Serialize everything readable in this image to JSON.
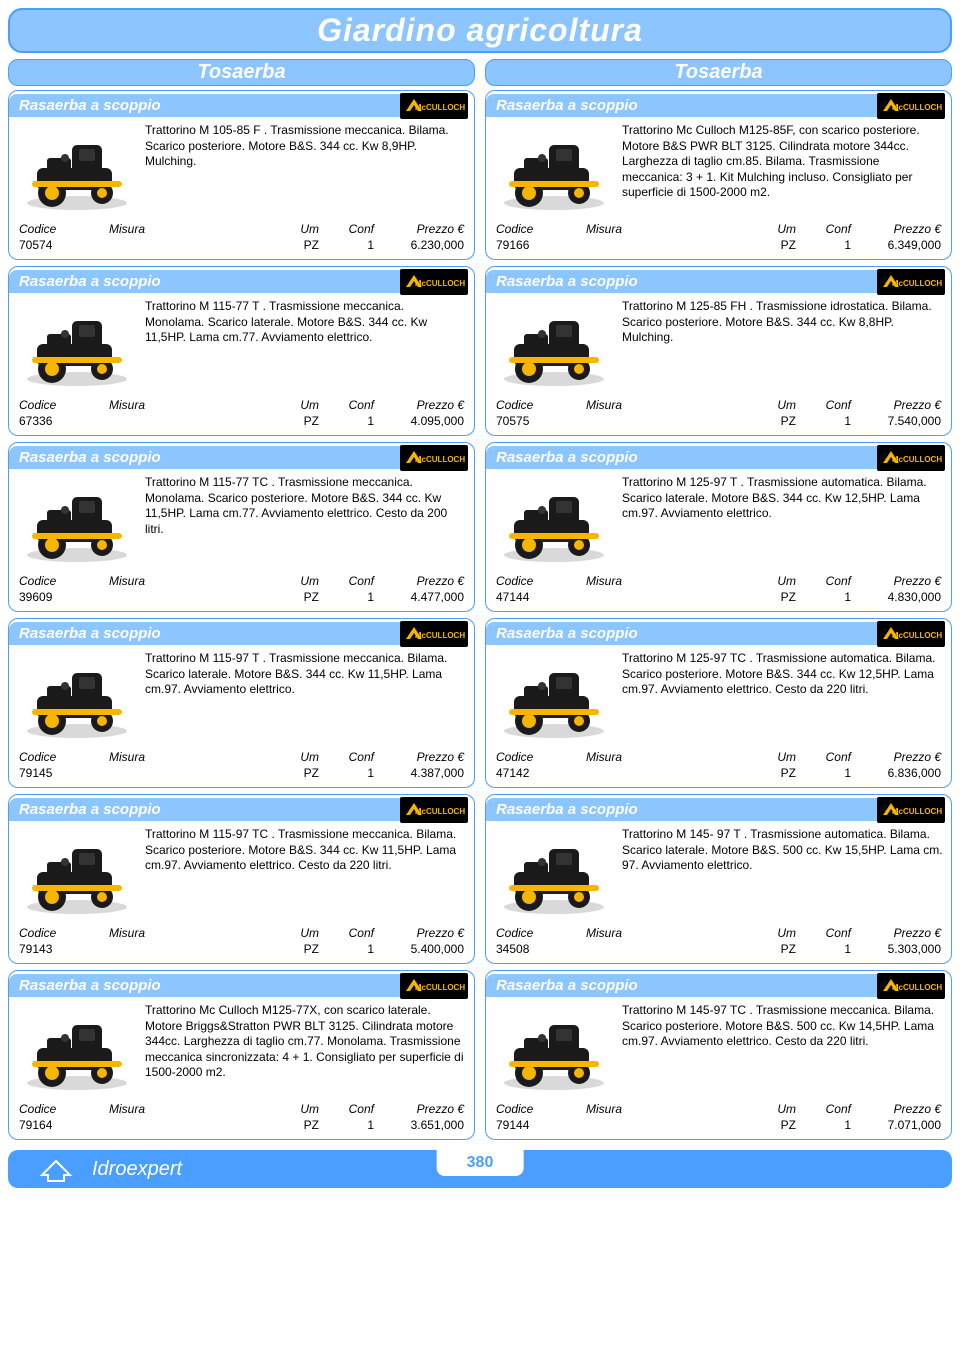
{
  "page_title": "Giardino agricoltura",
  "section_left": "Tosaerba",
  "section_right": "Tosaerba",
  "subcategory": "Rasaerba a scoppio",
  "brand": "McCULLOCH",
  "table_headers": {
    "codice": "Codice",
    "misura": "Misura",
    "um": "Um",
    "conf": "Conf",
    "prezzo": "Prezzo €"
  },
  "footer_brand": "Idroexpert",
  "footer_page": "380",
  "colors": {
    "accent": "#4a9eff",
    "bar_bg": "#8cc5ff",
    "white": "#ffffff",
    "badge_bg": "#000000",
    "badge_fg": "#f7b500"
  },
  "rows": [
    {
      "left": {
        "desc": "Trattorino M 105-85  F . Trasmissione meccanica. Bilama. Scarico posteriore. Motore B&S. 344 cc. Kw  8,9HP. Mulching.",
        "codice": "70574",
        "misura": "",
        "um": "PZ",
        "conf": "1",
        "prezzo": "6.230,000"
      },
      "right": {
        "desc": "Trattorino Mc Culloch M125-85F, con scarico posteriore. Motore B&S PWR BLT 3125. Cilindrata motore 344cc. Larghezza di taglio cm.85. Bilama. Trasmissione meccanica: 3 + 1. Kit Mulching incluso. Consigliato per superficie di 1500-2000 m2.",
        "codice": "79166",
        "misura": "",
        "um": "PZ",
        "conf": "1",
        "prezzo": "6.349,000"
      }
    },
    {
      "left": {
        "desc": "Trattorino M 115-77  T . Trasmissione meccanica. Monolama. Scarico laterale. Motore B&S. 344 cc. Kw 11,5HP. Lama cm.77. Avviamento elettrico.",
        "codice": "67336",
        "misura": "",
        "um": "PZ",
        "conf": "1",
        "prezzo": "4.095,000"
      },
      "right": {
        "desc": "Trattorino M 125-85  FH . Trasmissione idrostatica. Bilama. Scarico posteriore. Motore B&S. 344 cc. Kw  8,8HP. Mulching.",
        "codice": "70575",
        "misura": "",
        "um": "PZ",
        "conf": "1",
        "prezzo": "7.540,000"
      }
    },
    {
      "left": {
        "desc": "Trattorino M 115-77  TC . Trasmissione meccanica. Monolama. Scarico posteriore. Motore B&S. 344 cc. Kw 11,5HP. Lama cm.77. Avviamento elettrico. Cesto da 200 litri.",
        "codice": "39609",
        "misura": "",
        "um": "PZ",
        "conf": "1",
        "prezzo": "4.477,000"
      },
      "right": {
        "desc": "Trattorino M 125-97  T . Trasmissione automatica. Bilama. Scarico laterale. Motore B&S. 344 cc. Kw 12,5HP. Lama cm.97. Avviamento elettrico.",
        "codice": "47144",
        "misura": "",
        "um": "PZ",
        "conf": "1",
        "prezzo": "4.830,000"
      }
    },
    {
      "left": {
        "desc": "Trattorino M 115-97  T . Trasmissione meccanica. Bilama. Scarico laterale. Motore B&S. 344 cc. Kw 11,5HP. Lama cm.97. Avviamento elettrico.",
        "codice": "79145",
        "misura": "",
        "um": "PZ",
        "conf": "1",
        "prezzo": "4.387,000"
      },
      "right": {
        "desc": "Trattorino M 125-97  TC . Trasmissione automatica. Bilama. Scarico posteriore. Motore B&S. 344 cc. Kw 12,5HP. Lama cm.97. Avviamento elettrico. Cesto da 220 litri.",
        "codice": "47142",
        "misura": "",
        "um": "PZ",
        "conf": "1",
        "prezzo": "6.836,000"
      }
    },
    {
      "left": {
        "desc": "Trattorino M 115-97  TC . Trasmissione meccanica. Bilama. Scarico posteriore. Motore B&S. 344 cc. Kw 11,5HP. Lama cm.97. Avviamento elettrico. Cesto da 220 litri.",
        "codice": "79143",
        "misura": "",
        "um": "PZ",
        "conf": "1",
        "prezzo": "5.400,000"
      },
      "right": {
        "desc": "Trattorino M 145- 97 T . Trasmissione automatica. Bilama. Scarico laterale. Motore B&S. 500 cc. Kw 15,5HP. Lama cm. 97. Avviamento elettrico.",
        "codice": "34508",
        "misura": "",
        "um": "PZ",
        "conf": "1",
        "prezzo": "5.303,000"
      }
    },
    {
      "left": {
        "desc": "Trattorino Mc Culloch M125-77X, con scarico laterale. Motore Briggs&Stratton PWR BLT 3125. Cilindrata motore 344cc. Larghezza di taglio cm.77. Monolama. Trasmissione meccanica sincronizzata: 4 + 1. Consigliato per superficie di 1500-2000 m2.",
        "codice": "79164",
        "misura": "",
        "um": "PZ",
        "conf": "1",
        "prezzo": "3.651,000"
      },
      "right": {
        "desc": "Trattorino M 145-97  TC . Trasmissione meccanica. Bilama. Scarico posteriore. Motore B&S. 500 cc. Kw 14,5HP. Lama cm.97. Avviamento elettrico. Cesto da 220 litri.",
        "codice": "79144",
        "misura": "",
        "um": "PZ",
        "conf": "1",
        "prezzo": "7.071,000"
      }
    }
  ]
}
